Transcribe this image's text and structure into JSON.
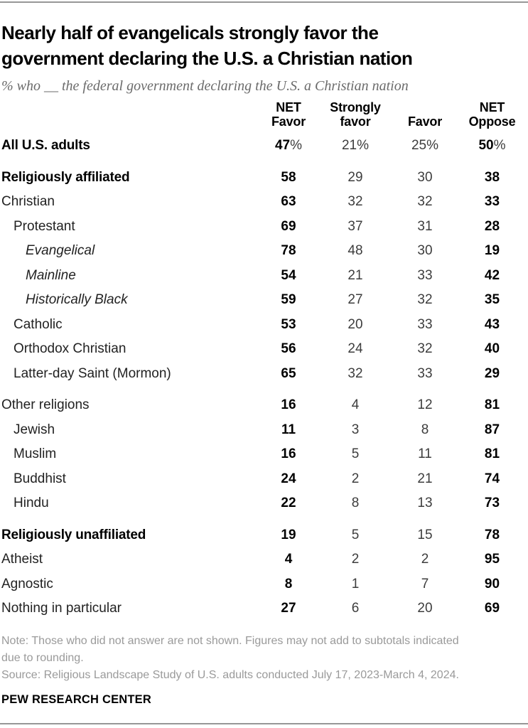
{
  "page": {
    "title_line1": "Nearly half of evangelicals strongly favor the",
    "title_line2": "government declaring the U.S. a Christian nation",
    "subtitle": "% who __ the federal government declaring the U.S. a Christian nation",
    "note_line1": "Note: Those who did not answer are not shown. Figures may not add to subtotals indicated",
    "note_line2": "due to rounding.",
    "source": "Source: Religious Landscape Study of U.S. adults conducted July 17, 2023-March 4, 2024.",
    "brand": "PEW RESEARCH CENTER"
  },
  "chart_data": {
    "type": "table",
    "title": "Nearly half of evangelicals strongly favor the government declaring the U.S. a Christian nation",
    "subtitle": "% who __ the federal government declaring the U.S. a Christian nation",
    "unit": "%",
    "columns": [
      {
        "id": "net-favor",
        "label_line1": "NET",
        "label_line2": "Favor",
        "bold": true
      },
      {
        "id": "strongly-favor",
        "label_line1": "Strongly",
        "label_line2": "favor",
        "bold": false
      },
      {
        "id": "favor",
        "label_line1": "",
        "label_line2": "Favor",
        "bold": false
      },
      {
        "id": "net-oppose",
        "label_line1": "NET",
        "label_line2": "Oppose",
        "bold": true
      }
    ],
    "rows": [
      {
        "label": "All U.S. adults",
        "style": "bold",
        "indent": 0,
        "section_gap": false,
        "show_percent": true,
        "values": [
          47,
          21,
          25,
          50
        ]
      },
      {
        "label": "Religiously affiliated",
        "style": "bold",
        "indent": 0,
        "section_gap": true,
        "show_percent": false,
        "values": [
          58,
          29,
          30,
          38
        ]
      },
      {
        "label": "Christian",
        "style": "regular",
        "indent": 0,
        "section_gap": false,
        "show_percent": false,
        "values": [
          63,
          32,
          32,
          33
        ]
      },
      {
        "label": "Protestant",
        "style": "regular",
        "indent": 1,
        "section_gap": false,
        "show_percent": false,
        "values": [
          69,
          37,
          31,
          28
        ]
      },
      {
        "label": "Evangelical",
        "style": "italic",
        "indent": 2,
        "section_gap": false,
        "show_percent": false,
        "values": [
          78,
          48,
          30,
          19
        ]
      },
      {
        "label": "Mainline",
        "style": "italic",
        "indent": 2,
        "section_gap": false,
        "show_percent": false,
        "values": [
          54,
          21,
          33,
          42
        ]
      },
      {
        "label": "Historically Black",
        "style": "italic",
        "indent": 2,
        "section_gap": false,
        "show_percent": false,
        "values": [
          59,
          27,
          32,
          35
        ]
      },
      {
        "label": "Catholic",
        "style": "regular",
        "indent": 1,
        "section_gap": false,
        "show_percent": false,
        "values": [
          53,
          20,
          33,
          43
        ]
      },
      {
        "label": "Orthodox Christian",
        "style": "regular",
        "indent": 1,
        "section_gap": false,
        "show_percent": false,
        "values": [
          56,
          24,
          32,
          40
        ]
      },
      {
        "label": "Latter-day Saint (Mormon)",
        "style": "regular",
        "indent": 1,
        "section_gap": false,
        "show_percent": false,
        "values": [
          65,
          32,
          33,
          29
        ]
      },
      {
        "label": "Other religions",
        "style": "regular",
        "indent": 0,
        "section_gap": true,
        "show_percent": false,
        "values": [
          16,
          4,
          12,
          81
        ]
      },
      {
        "label": "Jewish",
        "style": "regular",
        "indent": 1,
        "section_gap": false,
        "show_percent": false,
        "values": [
          11,
          3,
          8,
          87
        ]
      },
      {
        "label": "Muslim",
        "style": "regular",
        "indent": 1,
        "section_gap": false,
        "show_percent": false,
        "values": [
          16,
          5,
          11,
          81
        ]
      },
      {
        "label": "Buddhist",
        "style": "regular",
        "indent": 1,
        "section_gap": false,
        "show_percent": false,
        "values": [
          24,
          2,
          21,
          74
        ]
      },
      {
        "label": "Hindu",
        "style": "regular",
        "indent": 1,
        "section_gap": false,
        "show_percent": false,
        "values": [
          22,
          8,
          13,
          73
        ]
      },
      {
        "label": "Religiously unaffiliated",
        "style": "bold",
        "indent": 0,
        "section_gap": true,
        "show_percent": false,
        "values": [
          19,
          5,
          15,
          78
        ]
      },
      {
        "label": "Atheist",
        "style": "regular",
        "indent": 0,
        "section_gap": false,
        "show_percent": false,
        "values": [
          4,
          2,
          2,
          95
        ]
      },
      {
        "label": "Agnostic",
        "style": "regular",
        "indent": 0,
        "section_gap": false,
        "show_percent": false,
        "values": [
          8,
          1,
          7,
          90
        ]
      },
      {
        "label": "Nothing in particular",
        "style": "regular",
        "indent": 0,
        "section_gap": false,
        "show_percent": false,
        "values": [
          27,
          6,
          20,
          69
        ]
      }
    ],
    "layout": {
      "net_columns_bold": true,
      "grid": false,
      "legend_position": "none"
    }
  },
  "colors": {
    "bold_value": "#000000",
    "regular_value": "#3d3d3d",
    "label": "#222222",
    "subtitle": "#6b6b6b",
    "note": "#9a9a9a",
    "rule": "#979797"
  }
}
